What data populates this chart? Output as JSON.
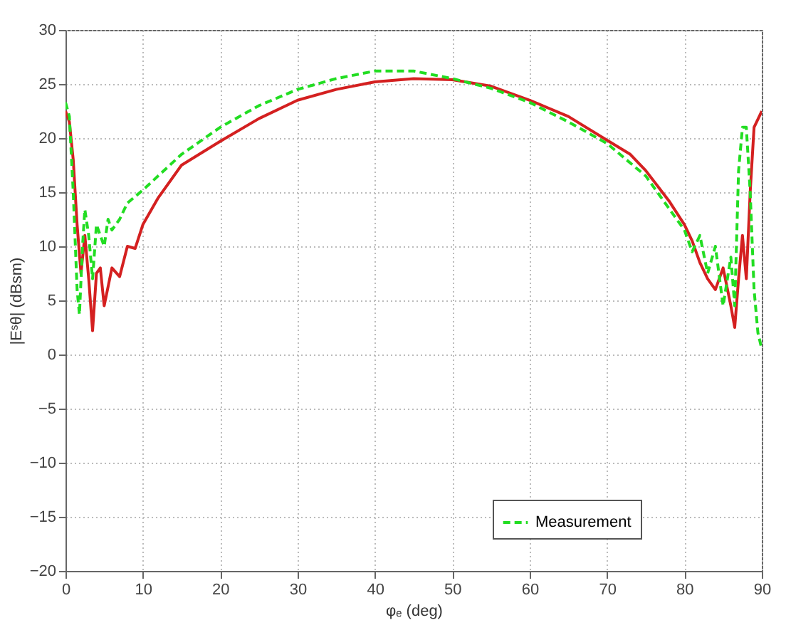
{
  "chart_data": {
    "type": "line",
    "xlabel": "φₑ (deg)",
    "ylabel": "|Eˢθ| (dBsm)",
    "xlim": [
      0,
      90
    ],
    "xticks": [
      0,
      10,
      20,
      30,
      40,
      50,
      60,
      70,
      80,
      90
    ],
    "ylim": [
      -20,
      30
    ],
    "yticks": [
      -20,
      -15,
      -10,
      -5,
      0,
      5,
      10,
      15,
      20,
      25,
      30
    ],
    "grid": true,
    "legend": "bottom right",
    "series": [
      {
        "color": "#d42020",
        "line_style": "solid",
        "x": [
          0,
          0.5,
          1,
          1.5,
          2,
          2.5,
          3,
          3.5,
          4,
          4.5,
          5,
          6,
          7,
          8,
          9,
          10,
          12,
          15,
          20,
          25,
          30,
          35,
          40,
          45,
          50,
          55,
          60,
          65,
          70,
          73,
          75,
          78,
          80,
          81,
          82,
          83,
          84,
          85,
          86,
          86.5,
          87,
          87.5,
          88,
          88.5,
          89,
          90
        ],
        "values": [
          22.5,
          21.5,
          18,
          12,
          7.5,
          11,
          7,
          2.2,
          7.5,
          8,
          4.5,
          8,
          7.2,
          10,
          9.8,
          12,
          14.5,
          17.5,
          19.7,
          21.8,
          23.5,
          24.5,
          25.2,
          25.5,
          25.4,
          24.8,
          23.5,
          22,
          19.8,
          18.5,
          17,
          14.2,
          12,
          10.5,
          8.5,
          7,
          6,
          8,
          4.5,
          2.5,
          7,
          11,
          7,
          15,
          21,
          22.5
        ]
      },
      {
        "name": "Measurement",
        "color": "#22dd22",
        "line_style": "dashed",
        "x": [
          0,
          0.5,
          1,
          1.5,
          1.8,
          2.2,
          2.5,
          3,
          3.5,
          4,
          4.5,
          5,
          5.5,
          6,
          7,
          8,
          10,
          15,
          20,
          25,
          30,
          35,
          40,
          45,
          50,
          55,
          60,
          65,
          70,
          75,
          78,
          80,
          81,
          82,
          83,
          84,
          85,
          86,
          86.5,
          87,
          87.5,
          88,
          88.5,
          89,
          89.5,
          90
        ],
        "values": [
          23.3,
          22,
          15,
          6,
          3.7,
          10,
          13.4,
          11,
          7,
          12,
          11,
          10,
          12.5,
          11.5,
          12.5,
          14,
          15.2,
          18.5,
          21,
          23,
          24.5,
          25.5,
          26.2,
          26.2,
          25.5,
          24.6,
          23.3,
          21.5,
          19.5,
          16.5,
          13.5,
          11.5,
          9.5,
          11,
          7.5,
          10,
          4.5,
          9,
          4.5,
          17,
          21,
          21,
          15,
          6,
          2,
          0.5
        ]
      }
    ]
  }
}
